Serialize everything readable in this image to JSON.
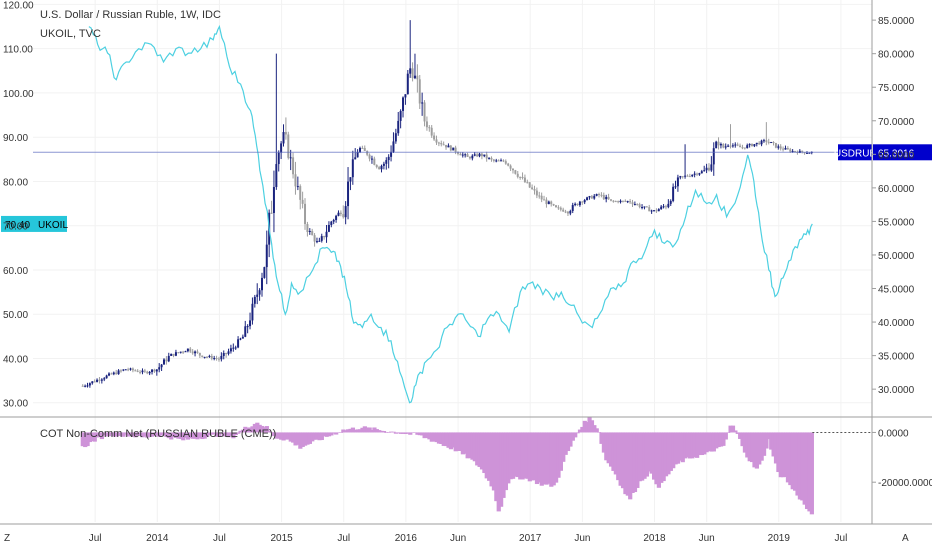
{
  "chart_data": [
    {
      "type": "candlestick",
      "legend_lines": [
        "U.S. Dollar / Russian Ruble, 1W, IDC",
        "UKOIL, TVC"
      ],
      "x_tick_labels": [
        "Jul",
        "2014",
        "Jul",
        "2015",
        "Jul",
        "2016",
        "Jun",
        "2017",
        "Jun",
        "2018",
        "Jun",
        "2019",
        "Jul"
      ],
      "left_axis": {
        "series": "UKOIL",
        "ticks": [
          30,
          40,
          50,
          60,
          70,
          80,
          90,
          100,
          110,
          120
        ],
        "tick_labels": [
          "30.00",
          "40.00",
          "50.00",
          "60.00",
          "70.00",
          "80.00",
          "90.00",
          "100.00",
          "110.00",
          "120.00"
        ],
        "range": [
          27,
          121
        ]
      },
      "right_axis": {
        "series": "USDRUB",
        "ticks": [
          30,
          35,
          40,
          45,
          50,
          55,
          60,
          65,
          70,
          75,
          80,
          85
        ],
        "tick_labels": [
          "30.0000",
          "35.0000",
          "40.0000",
          "45.0000",
          "50.0000",
          "55.0000",
          "60.0000",
          "65.0000",
          "70.0000",
          "75.0000",
          "80.0000",
          "85.0000"
        ],
        "range": [
          26,
          88
        ]
      },
      "series": [
        {
          "name": "UKOIL",
          "kind": "line",
          "axis": "left",
          "color": "#4dd0e1",
          "last_value_label": "70.40",
          "tag_label": "UKOIL",
          "points": [
            [
              2013.45,
              115.0
            ],
            [
              2013.52,
              111.0
            ],
            [
              2013.6,
              109.0
            ],
            [
              2013.67,
              103.0
            ],
            [
              2013.75,
              107.0
            ],
            [
              2013.85,
              110.0
            ],
            [
              2013.95,
              111.0
            ],
            [
              2014.05,
              107.0
            ],
            [
              2014.15,
              110.0
            ],
            [
              2014.25,
              109.0
            ],
            [
              2014.35,
              110.0
            ],
            [
              2014.45,
              112.0
            ],
            [
              2014.5,
              115.0
            ],
            [
              2014.58,
              106.0
            ],
            [
              2014.67,
              102.0
            ],
            [
              2014.75,
              96.0
            ],
            [
              2014.8,
              88.0
            ],
            [
              2014.85,
              79.0
            ],
            [
              2014.92,
              66.0
            ],
            [
              2014.97,
              57.0
            ],
            [
              2015.03,
              50.0
            ],
            [
              2015.08,
              57.0
            ],
            [
              2015.15,
              55.0
            ],
            [
              2015.25,
              60.0
            ],
            [
              2015.33,
              65.0
            ],
            [
              2015.4,
              64.0
            ],
            [
              2015.46,
              62.0
            ],
            [
              2015.52,
              56.0
            ],
            [
              2015.58,
              48.0
            ],
            [
              2015.65,
              47.0
            ],
            [
              2015.72,
              50.0
            ],
            [
              2015.8,
              47.0
            ],
            [
              2015.88,
              44.0
            ],
            [
              2015.95,
              37.0
            ],
            [
              2016.03,
              30.0
            ],
            [
              2016.08,
              34.0
            ],
            [
              2016.15,
              39.0
            ],
            [
              2016.25,
              42.0
            ],
            [
              2016.33,
              47.0
            ],
            [
              2016.42,
              50.0
            ],
            [
              2016.5,
              48.0
            ],
            [
              2016.58,
              45.0
            ],
            [
              2016.66,
              49.0
            ],
            [
              2016.75,
              50.0
            ],
            [
              2016.83,
              46.0
            ],
            [
              2016.92,
              55.0
            ],
            [
              2017.0,
              57.0
            ],
            [
              2017.08,
              56.0
            ],
            [
              2017.17,
              54.0
            ],
            [
              2017.25,
              55.0
            ],
            [
              2017.33,
              52.0
            ],
            [
              2017.42,
              48.0
            ],
            [
              2017.5,
              47.0
            ],
            [
              2017.58,
              51.0
            ],
            [
              2017.67,
              56.0
            ],
            [
              2017.75,
              57.0
            ],
            [
              2017.83,
              62.0
            ],
            [
              2017.92,
              64.0
            ],
            [
              2018.0,
              69.0
            ],
            [
              2018.08,
              66.0
            ],
            [
              2018.17,
              66.0
            ],
            [
              2018.25,
              72.0
            ],
            [
              2018.33,
              78.0
            ],
            [
              2018.42,
              75.0
            ],
            [
              2018.5,
              77.0
            ],
            [
              2018.58,
              72.0
            ],
            [
              2018.67,
              77.0
            ],
            [
              2018.75,
              86.0
            ],
            [
              2018.8,
              80.0
            ],
            [
              2018.85,
              70.0
            ],
            [
              2018.92,
              60.0
            ],
            [
              2018.97,
              54.0
            ],
            [
              2019.02,
              58.0
            ],
            [
              2019.08,
              62.0
            ],
            [
              2019.15,
              65.0
            ],
            [
              2019.22,
              68.0
            ],
            [
              2019.27,
              70.4
            ]
          ]
        },
        {
          "name": "USDRUB",
          "kind": "candles",
          "axis": "right",
          "color_up": "#1a237e",
          "color_down": "#9e9e9e",
          "last_value_label": "65.3016",
          "tag_label": "USDRUB",
          "anchors": [
            [
              2013.4,
              30.5
            ],
            [
              2013.6,
              32.0
            ],
            [
              2013.75,
              33.0
            ],
            [
              2013.9,
              32.5
            ],
            [
              2014.0,
              33.0
            ],
            [
              2014.1,
              35.0
            ],
            [
              2014.25,
              36.0
            ],
            [
              2014.35,
              35.0
            ],
            [
              2014.5,
              34.5
            ],
            [
              2014.6,
              36.0
            ],
            [
              2014.7,
              38.0
            ],
            [
              2014.8,
              44.0
            ],
            [
              2014.88,
              50.0
            ],
            [
              2014.95,
              64.0
            ],
            [
              2015.02,
              68.0
            ],
            [
              2015.1,
              62.0
            ],
            [
              2015.2,
              54.0
            ],
            [
              2015.3,
              51.5
            ],
            [
              2015.4,
              55.0
            ],
            [
              2015.5,
              57.0
            ],
            [
              2015.55,
              62.0
            ],
            [
              2015.62,
              66.0
            ],
            [
              2015.7,
              65.0
            ],
            [
              2015.78,
              63.0
            ],
            [
              2015.85,
              64.0
            ],
            [
              2015.95,
              70.0
            ],
            [
              2016.03,
              78.0
            ],
            [
              2016.08,
              76.0
            ],
            [
              2016.15,
              70.0
            ],
            [
              2016.25,
              67.0
            ],
            [
              2016.35,
              66.0
            ],
            [
              2016.5,
              64.5
            ],
            [
              2016.6,
              65.0
            ],
            [
              2016.7,
              64.0
            ],
            [
              2016.8,
              64.0
            ],
            [
              2016.9,
              62.0
            ],
            [
              2017.0,
              60.0
            ],
            [
              2017.08,
              58.5
            ],
            [
              2017.2,
              57.0
            ],
            [
              2017.3,
              56.5
            ],
            [
              2017.4,
              58.0
            ],
            [
              2017.55,
              59.0
            ],
            [
              2017.65,
              58.0
            ],
            [
              2017.8,
              58.0
            ],
            [
              2017.92,
              57.0
            ],
            [
              2018.0,
              56.5
            ],
            [
              2018.1,
              57.5
            ],
            [
              2018.2,
              61.5
            ],
            [
              2018.3,
              62.0
            ],
            [
              2018.4,
              62.5
            ],
            [
              2018.45,
              63.5
            ],
            [
              2018.5,
              67.0
            ],
            [
              2018.55,
              66.0
            ],
            [
              2018.6,
              66.5
            ],
            [
              2018.7,
              66.0
            ],
            [
              2018.8,
              66.5
            ],
            [
              2018.9,
              67.0
            ],
            [
              2019.0,
              66.0
            ],
            [
              2019.1,
              65.5
            ],
            [
              2019.2,
              65.3
            ],
            [
              2019.27,
              65.3016
            ]
          ],
          "spikes": [
            [
              2014.95,
              80.0
            ],
            [
              2015.03,
              70.5
            ],
            [
              2016.03,
              85.0
            ],
            [
              2016.08,
              80.0
            ],
            [
              2018.25,
              66.5
            ],
            [
              2018.62,
              69.5
            ],
            [
              2018.9,
              69.8
            ]
          ]
        }
      ]
    },
    {
      "type": "bar",
      "title": "COT Non-Comm Net (RUSSIAN RUBLE (CME))",
      "color": "#ce93d8",
      "axis_ticks": [
        0,
        -20000
      ],
      "axis_tick_labels": [
        "0.0000",
        "-20000.0000"
      ],
      "range": [
        -36000,
        5000
      ],
      "anchors": [
        [
          2013.4,
          -6000
        ],
        [
          2013.5,
          -3000
        ],
        [
          2013.6,
          -1000
        ],
        [
          2013.75,
          -1000
        ],
        [
          2013.9,
          -2000
        ],
        [
          2014.0,
          -1000
        ],
        [
          2014.1,
          -2000
        ],
        [
          2014.2,
          -3000
        ],
        [
          2014.35,
          -2000
        ],
        [
          2014.5,
          -1000
        ],
        [
          2014.6,
          -2000
        ],
        [
          2014.7,
          1500
        ],
        [
          2014.8,
          4000
        ],
        [
          2014.88,
          2000
        ],
        [
          2014.95,
          -2000
        ],
        [
          2015.05,
          -3000
        ],
        [
          2015.15,
          -6000
        ],
        [
          2015.25,
          -4000
        ],
        [
          2015.35,
          -2000
        ],
        [
          2015.5,
          1000
        ],
        [
          2015.65,
          2000
        ],
        [
          2015.85,
          500
        ],
        [
          2016.0,
          -500
        ],
        [
          2016.1,
          -1000
        ],
        [
          2016.2,
          -3000
        ],
        [
          2016.3,
          -5000
        ],
        [
          2016.4,
          -7000
        ],
        [
          2016.5,
          -10000
        ],
        [
          2016.6,
          -14000
        ],
        [
          2016.7,
          -22000
        ],
        [
          2016.75,
          -32000
        ],
        [
          2016.82,
          -20000
        ],
        [
          2016.9,
          -18000
        ],
        [
          2017.0,
          -19000
        ],
        [
          2017.1,
          -21000
        ],
        [
          2017.2,
          -21500
        ],
        [
          2017.28,
          -10000
        ],
        [
          2017.36,
          -2000
        ],
        [
          2017.42,
          3000
        ],
        [
          2017.48,
          6000
        ],
        [
          2017.55,
          1000
        ],
        [
          2017.6,
          -10000
        ],
        [
          2017.68,
          -16000
        ],
        [
          2017.76,
          -24000
        ],
        [
          2017.8,
          -27000
        ],
        [
          2017.88,
          -20000
        ],
        [
          2017.96,
          -16000
        ],
        [
          2018.04,
          -22000
        ],
        [
          2018.12,
          -16000
        ],
        [
          2018.2,
          -12000
        ],
        [
          2018.3,
          -10000
        ],
        [
          2018.4,
          -9000
        ],
        [
          2018.48,
          -7000
        ],
        [
          2018.55,
          -6000
        ],
        [
          2018.62,
          3500
        ],
        [
          2018.68,
          -2000
        ],
        [
          2018.75,
          -10000
        ],
        [
          2018.82,
          -15000
        ],
        [
          2018.86,
          -12000
        ],
        [
          2018.92,
          -3000
        ],
        [
          2019.0,
          -17000
        ],
        [
          2019.05,
          -18000
        ],
        [
          2019.1,
          -22000
        ],
        [
          2019.15,
          -25000
        ],
        [
          2019.22,
          -30000
        ],
        [
          2019.27,
          -34000
        ]
      ]
    }
  ],
  "corner_labels": {
    "left": "Z",
    "right": "A"
  }
}
